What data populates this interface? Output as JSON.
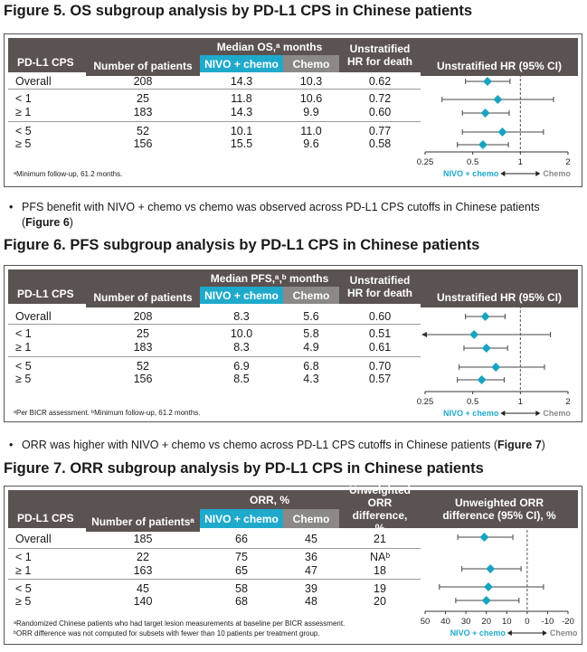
{
  "fig5": {
    "title": "Figure 5. OS subgroup analysis by PD-L1 CPS in Chinese patients",
    "col_cps": "PD-L1 CPS",
    "col_n": "Number of patients",
    "col_median": "Median OS,ᵃ months",
    "col_nivo": "NIVO + chemo",
    "col_chemo": "Chemo",
    "col_hr": "Unstratified HR for death",
    "col_plot": "Unstratified HR (95% CI)",
    "rows": [
      {
        "cps": "Overall",
        "n": "208",
        "nivo": "14.3",
        "chemo": "10.3",
        "hr": "0.62"
      },
      {
        "cps": "< 1",
        "n": "25",
        "nivo": "11.8",
        "chemo": "10.6",
        "hr": "0.72"
      },
      {
        "cps": "≥ 1",
        "n": "183",
        "nivo": "14.3",
        "chemo": "9.9",
        "hr": "0.60"
      },
      {
        "cps": "< 5",
        "n": "52",
        "nivo": "10.1",
        "chemo": "11.0",
        "hr": "0.77"
      },
      {
        "cps": "≥ 5",
        "n": "156",
        "nivo": "15.5",
        "chemo": "9.6",
        "hr": "0.58"
      }
    ],
    "ticks": [
      "0.25",
      "0.5",
      "1",
      "2"
    ],
    "favor_left": "NIVO + chemo",
    "favor_right": "Chemo",
    "footnote": "ᵃMinimum follow-up, 61.2 months."
  },
  "bullet1": "PFS benefit with NIVO + chemo vs chemo was observed across PD-L1 CPS cutoffs in Chinese patients",
  "bullet1_ref": "Figure 6",
  "fig6": {
    "title": "Figure 6. PFS subgroup analysis by PD-L1 CPS in Chinese patients",
    "col_cps": "PD-L1 CPS",
    "col_n": "Number of patients",
    "col_median": "Median PFS,ᵃ,ᵇ months",
    "col_nivo": "NIVO + chemo",
    "col_chemo": "Chemo",
    "col_hr": "Unstratified HR for death",
    "col_plot": "Unstratified HR (95% CI)",
    "rows": [
      {
        "cps": "Overall",
        "n": "208",
        "nivo": "8.3",
        "chemo": "5.6",
        "hr": "0.60"
      },
      {
        "cps": "< 1",
        "n": "25",
        "nivo": "10.0",
        "chemo": "5.8",
        "hr": "0.51"
      },
      {
        "cps": "≥ 1",
        "n": "183",
        "nivo": "8.3",
        "chemo": "4.9",
        "hr": "0.61"
      },
      {
        "cps": "< 5",
        "n": "52",
        "nivo": "6.9",
        "chemo": "6.8",
        "hr": "0.70"
      },
      {
        "cps": "≥ 5",
        "n": "156",
        "nivo": "8.5",
        "chemo": "4.3",
        "hr": "0.57"
      }
    ],
    "ticks": [
      "0.25",
      "0.5",
      "1",
      "2"
    ],
    "favor_left": "NIVO + chemo",
    "favor_right": "Chemo",
    "footnote": "ᵃPer BICR assessment. ᵇMinimum follow-up, 61.2 months."
  },
  "bullet2": "ORR was higher with NIVO + chemo vs chemo across PD-L1 CPS cutoffs in Chinese patients (",
  "bullet2_ref": "Figure 7",
  "bullet2_end": ")",
  "fig7": {
    "title": "Figure 7. ORR subgroup analysis by PD-L1 CPS in Chinese patients",
    "col_cps": "PD-L1 CPS",
    "col_n": "Number of patientsᵃ",
    "col_median": "ORR, %",
    "col_nivo": "NIVO + chemo",
    "col_chemo": "Chemo",
    "col_hr": "Unweighted ORR difference, %",
    "col_plot": "Unweighted ORR difference (95% CI), %",
    "rows": [
      {
        "cps": "Overall",
        "n": "185",
        "nivo": "66",
        "chemo": "45",
        "hr": "21"
      },
      {
        "cps": "< 1",
        "n": "22",
        "nivo": "75",
        "chemo": "36",
        "hr": "NAᵇ"
      },
      {
        "cps": "≥ 1",
        "n": "163",
        "nivo": "65",
        "chemo": "47",
        "hr": "18"
      },
      {
        "cps": "< 5",
        "n": "45",
        "nivo": "58",
        "chemo": "39",
        "hr": "19"
      },
      {
        "cps": "≥ 5",
        "n": "140",
        "nivo": "68",
        "chemo": "48",
        "hr": "20"
      }
    ],
    "ticks": [
      "50",
      "40",
      "30",
      "20",
      "10",
      "0",
      "-10",
      "-20"
    ],
    "favor_left": "NIVO + chemo",
    "favor_right": "Chemo",
    "footnote": "ᵃRandomized Chinese patients who had target lesion measurements at baseline per BICR assessment.",
    "footnote2": "ᵇORR difference was not computed for subsets with fewer than 10 patients per treatment group."
  },
  "chart_data": [
    {
      "type": "forest",
      "title": "Unstratified HR (95% CI) — OS",
      "scale": "log",
      "xlim": [
        0.25,
        2
      ],
      "reference": 1,
      "categories": [
        "Overall",
        "< 1",
        "≥ 1",
        "< 5",
        "≥ 5"
      ],
      "values": [
        0.62,
        0.72,
        0.6,
        0.77,
        0.58
      ],
      "ci_low": [
        0.45,
        0.32,
        0.43,
        0.43,
        0.4
      ],
      "ci_high": [
        0.86,
        1.62,
        0.85,
        1.4,
        0.84
      ]
    },
    {
      "type": "forest",
      "title": "Unstratified HR (95% CI) — PFS",
      "scale": "log",
      "xlim": [
        0.25,
        2
      ],
      "reference": 1,
      "categories": [
        "Overall",
        "< 1",
        "≥ 1",
        "< 5",
        "≥ 5"
      ],
      "values": [
        0.6,
        0.51,
        0.61,
        0.7,
        0.57
      ],
      "ci_low": [
        0.45,
        0.25,
        0.44,
        0.41,
        0.4
      ],
      "ci_high": [
        0.8,
        1.55,
        0.83,
        1.42,
        0.79
      ],
      "ci_low_arrow": [
        false,
        true,
        false,
        false,
        false
      ]
    },
    {
      "type": "forest",
      "title": "Unweighted ORR difference (95% CI), %",
      "scale": "linear",
      "xlim": [
        50,
        -20
      ],
      "reference": 0,
      "categories": [
        "Overall",
        "< 1",
        "≥ 1",
        "< 5",
        "≥ 5"
      ],
      "values": [
        21,
        null,
        18,
        19,
        20
      ],
      "ci_low": [
        7,
        null,
        3,
        -8,
        4
      ],
      "ci_high": [
        34,
        null,
        32,
        43,
        35
      ]
    }
  ]
}
